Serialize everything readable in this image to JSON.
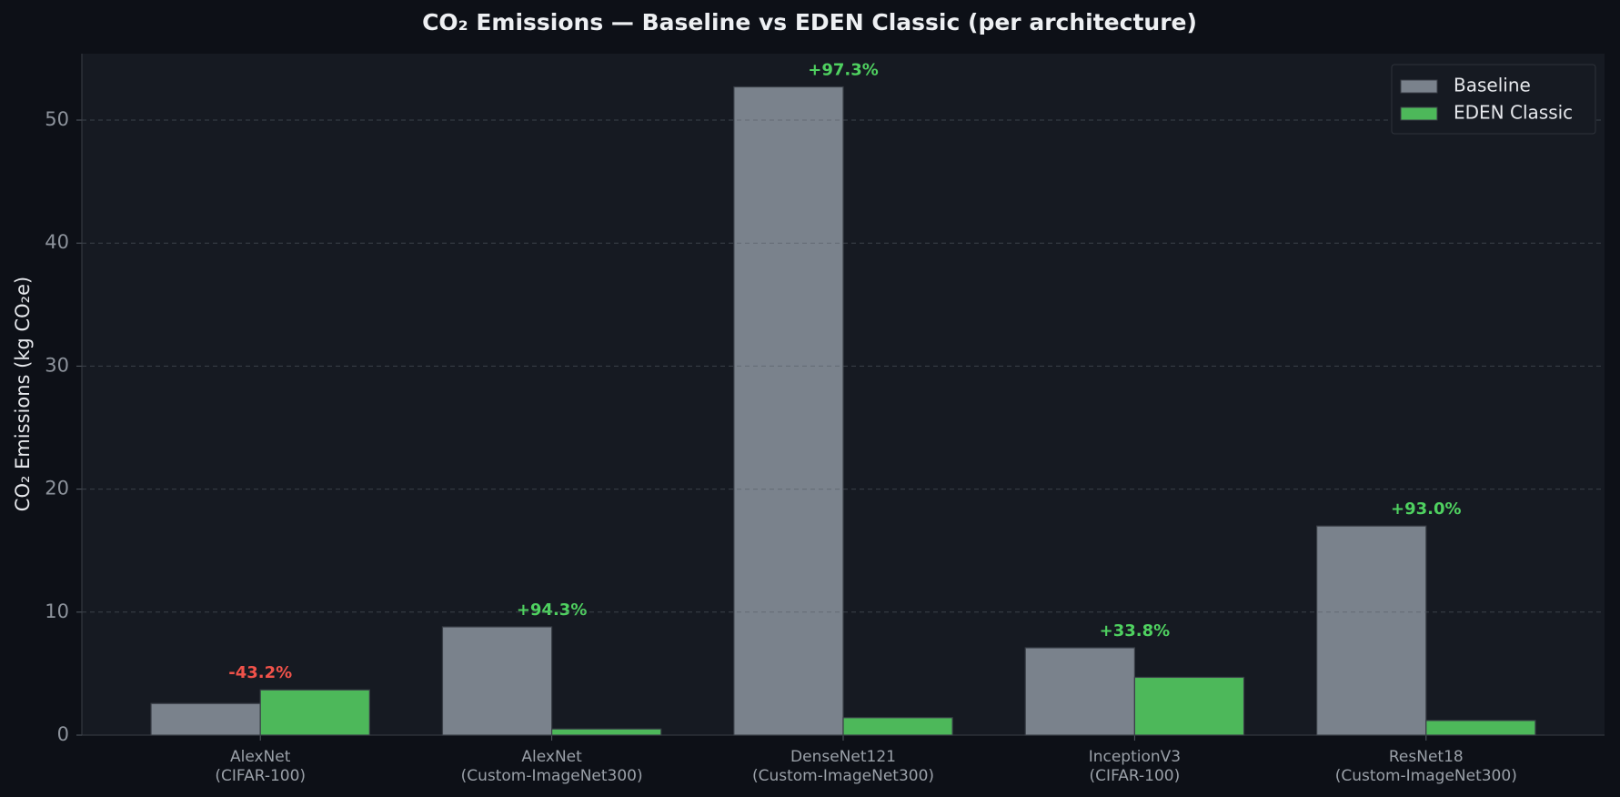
{
  "chart_data": {
    "type": "bar",
    "title": "CO₂ Emissions — Baseline vs EDEN Classic  (per architecture)",
    "y_label": "CO₂ Emissions (kg CO₂e)",
    "categories": [
      "AlexNet\n(CIFAR-100)",
      "AlexNet\n(Custom-ImageNet300)",
      "DenseNet121\n(Custom-ImageNet300)",
      "InceptionV3\n(CIFAR-100)",
      "ResNet18\n(Custom-ImageNet300)"
    ],
    "series": [
      {
        "name": "Baseline",
        "color": "#7a828c",
        "values": [
          2.57,
          8.8,
          52.7,
          7.1,
          17.0
        ]
      },
      {
        "name": "EDEN Classic",
        "color": "#4db85a",
        "values": [
          3.68,
          0.5,
          1.42,
          4.7,
          1.19
        ]
      }
    ],
    "annotations": [
      {
        "text": "-43.2%",
        "color": "#f0524a"
      },
      {
        "text": "+94.3%",
        "color": "#4fd160"
      },
      {
        "text": "+97.3%",
        "color": "#4fd160"
      },
      {
        "text": "+33.8%",
        "color": "#4fd160"
      },
      {
        "text": "+93.0%",
        "color": "#4fd160"
      }
    ],
    "ylim": [
      0,
      55.4
    ],
    "yticks": [
      0,
      10,
      20,
      30,
      40,
      50
    ],
    "grid": true,
    "legend": "upper right"
  }
}
